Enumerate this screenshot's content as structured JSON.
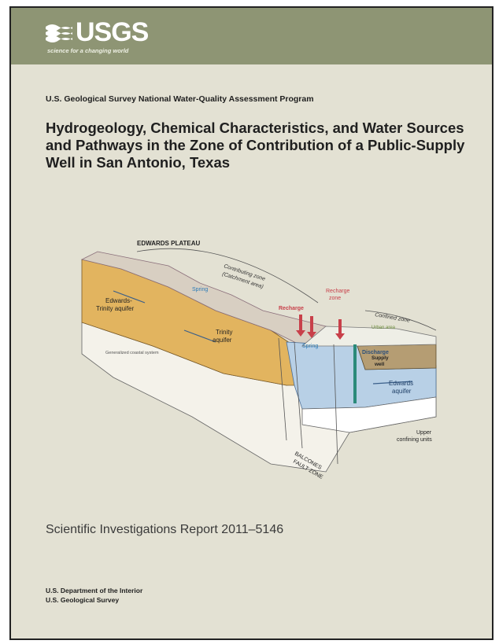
{
  "logo": {
    "name": "USGS",
    "tagline": "science for a changing world"
  },
  "program": "U.S. Geological Survey National Water-Quality Assessment Program",
  "title_lines": [
    "Hydrogeology, Chemical Characteristics, and Water Sources",
    "and Pathways in the Zone of Contribution of a Public-Supply",
    "Well in San Antonio, Texas"
  ],
  "figure": {
    "plateau_label": "EDWARDS PLATEAU",
    "contributing_zone": [
      "Contributing zone",
      "(Catchment area)"
    ],
    "recharge_zone": [
      "Recharge",
      "zone"
    ],
    "recharge": "Recharge",
    "confined_zone": "Confined zone",
    "spring": "Spring",
    "spring2": "Spring",
    "edwards_trinity": [
      "Edwards-",
      "Trinity aquifer"
    ],
    "trinity": [
      "Trinity",
      "aquifer"
    ],
    "discharge": "Discharge",
    "supply_well": [
      "Supply",
      "well"
    ],
    "edwards_aquifer": [
      "Edwards",
      "aquifer"
    ],
    "upper_confining": [
      "Upper",
      "confining units"
    ],
    "balcones": [
      "BALCONES",
      "FAULT ZONE"
    ],
    "generalized_coastal": "Generalized coastal system",
    "urban_area": "Urban area"
  },
  "report": "Scientific Investigations Report 2011–5146",
  "dept_lines": [
    "U.S. Department of the Interior",
    "U.S. Geological Survey"
  ],
  "colors": {
    "header_bar": "#8e9574",
    "background": "#e3e1d3",
    "aquifer_orange": "#e2b45f",
    "aquifer_blue": "#b8d0e6",
    "confining_tan": "#b59d73",
    "recharge_red": "#c8404a"
  }
}
